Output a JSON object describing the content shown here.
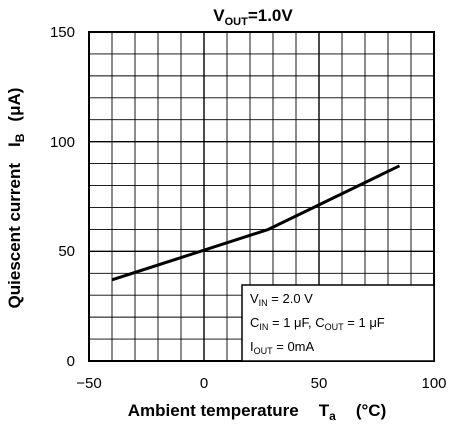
{
  "chart_data": {
    "type": "line",
    "title": {
      "main": "V",
      "sub": "OUT",
      "tail": "=1.0V"
    },
    "xlabel": {
      "main": "Ambient temperature",
      "sym": "T",
      "sub": "a",
      "unit": "(°C)"
    },
    "ylabel": {
      "main": "Quiescent current",
      "sym": "I",
      "sub": "B",
      "unit_open": "(",
      "unit_mu": "μ",
      "unit_rest": "A)"
    },
    "xlim": [
      -50,
      100
    ],
    "ylim": [
      0,
      150
    ],
    "x_ticks": [
      "−50",
      "0",
      "50",
      "100"
    ],
    "y_ticks": [
      "0",
      "50",
      "100",
      "150"
    ],
    "grid": true,
    "series": [
      {
        "x": [
          -40,
          28,
          85
        ],
        "y": [
          37,
          60,
          89
        ]
      }
    ],
    "annotation": {
      "line1": {
        "a": "V",
        "a_sub": "IN",
        "a_rest": " = 2.0 V"
      },
      "line2": {
        "a": "C",
        "a_sub": "IN",
        "a_rest": " = 1 μF, ",
        "b": "C",
        "b_sub": "OUT",
        "b_rest": " = 1 μF"
      },
      "line3": {
        "a": "I",
        "a_sub": "OUT",
        "a_rest": " = 0mA"
      }
    }
  }
}
